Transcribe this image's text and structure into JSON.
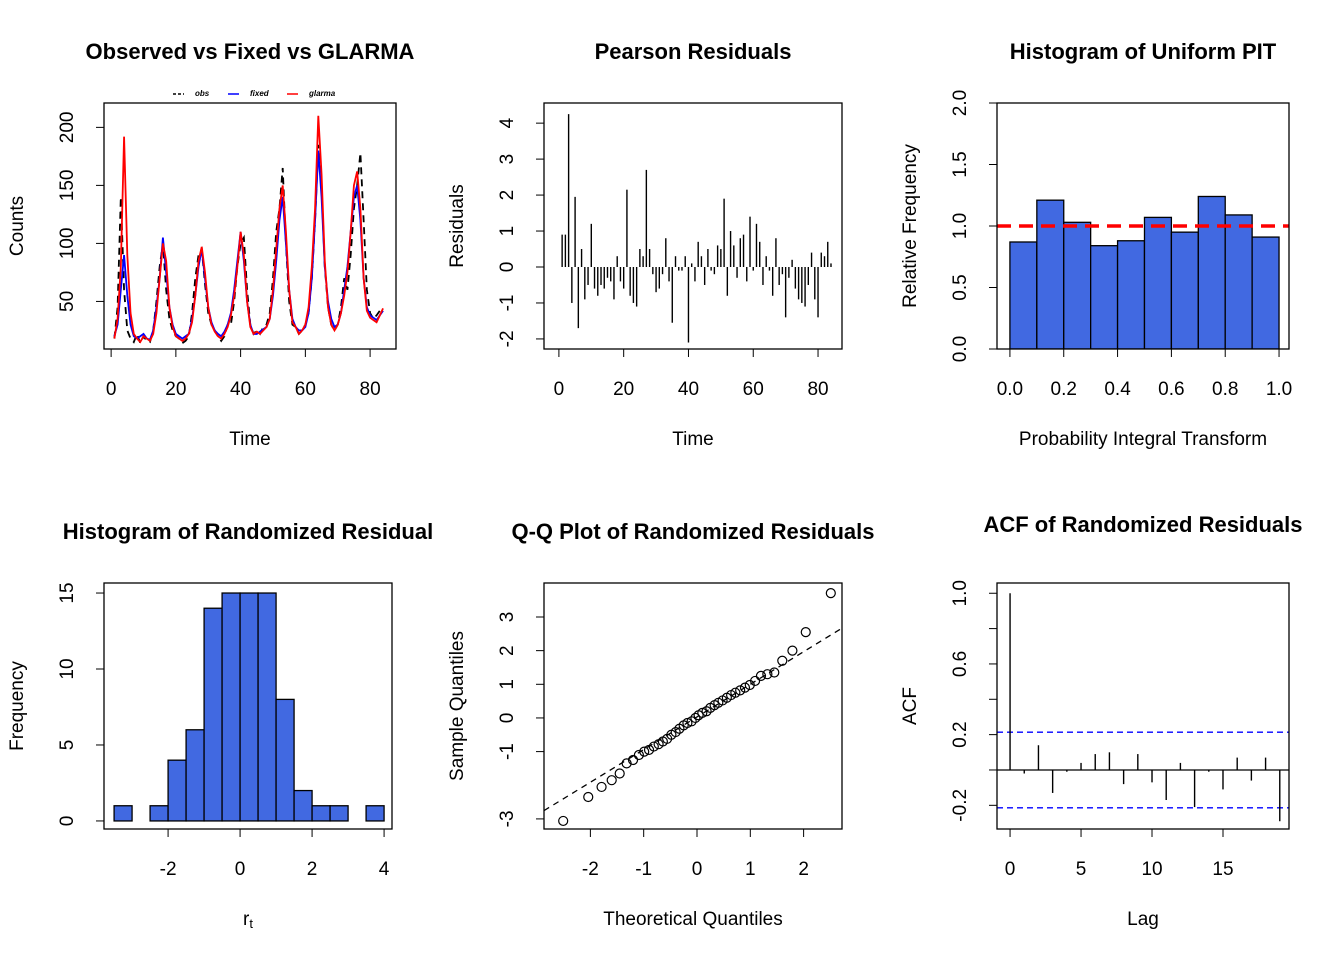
{
  "chart_data": [
    {
      "type": "line",
      "title": "Observed vs Fixed vs GLARMA",
      "x_label": "Time",
      "y_label": "Counts",
      "legend": "top",
      "x": [
        1,
        2,
        3,
        4,
        5,
        6,
        7,
        8,
        9,
        10,
        11,
        12,
        13,
        14,
        15,
        16,
        17,
        18,
        19,
        20,
        21,
        22,
        23,
        24,
        25,
        26,
        27,
        28,
        29,
        30,
        31,
        32,
        33,
        34,
        35,
        36,
        37,
        38,
        39,
        40,
        41,
        42,
        43,
        44,
        45,
        46,
        47,
        48,
        49,
        50,
        51,
        52,
        53,
        54,
        55,
        56,
        57,
        58,
        59,
        60,
        61,
        62,
        63,
        64,
        65,
        66,
        67,
        68,
        69,
        70,
        71,
        72,
        73,
        74,
        75,
        76,
        77,
        78,
        79,
        80,
        81,
        82,
        83,
        84
      ],
      "series": [
        {
          "name": "obs",
          "color": "#000000",
          "linestyle": "dashed",
          "values": [
            18,
            45,
            140,
            60,
            25,
            18,
            15,
            22,
            14,
            20,
            16,
            15,
            25,
            50,
            80,
            100,
            60,
            35,
            25,
            20,
            18,
            14,
            16,
            20,
            40,
            70,
            90,
            95,
            65,
            40,
            30,
            25,
            20,
            16,
            20,
            30,
            30,
            50,
            80,
            100,
            105,
            60,
            30,
            22,
            25,
            22,
            28,
            30,
            40,
            70,
            110,
            130,
            165,
            100,
            50,
            30,
            28,
            22,
            25,
            30,
            40,
            70,
            120,
            185,
            150,
            80,
            45,
            30,
            25,
            30,
            45,
            70,
            60,
            90,
            130,
            150,
            178,
            120,
            60,
            40,
            35,
            38,
            42,
            45
          ]
        },
        {
          "name": "fixed",
          "color": "#0000ff",
          "linestyle": "solid",
          "values": [
            20,
            30,
            60,
            90,
            55,
            30,
            20,
            18,
            20,
            22,
            18,
            17,
            25,
            45,
            70,
            105,
            75,
            45,
            30,
            22,
            20,
            18,
            20,
            22,
            35,
            55,
            80,
            95,
            70,
            45,
            32,
            25,
            22,
            20,
            24,
            30,
            40,
            60,
            85,
            110,
            85,
            50,
            30,
            22,
            22,
            24,
            26,
            28,
            35,
            55,
            85,
            120,
            140,
            100,
            60,
            35,
            28,
            25,
            25,
            28,
            40,
            70,
            120,
            180,
            140,
            80,
            50,
            35,
            28,
            30,
            40,
            60,
            80,
            110,
            140,
            150,
            120,
            70,
            45,
            38,
            36,
            34,
            38,
            42
          ]
        },
        {
          "name": "glarma",
          "color": "#ff0000",
          "linestyle": "solid",
          "values": [
            18,
            35,
            80,
            192,
            90,
            40,
            22,
            18,
            15,
            20,
            18,
            16,
            22,
            40,
            70,
            100,
            85,
            45,
            28,
            20,
            18,
            16,
            18,
            22,
            32,
            55,
            85,
            97,
            75,
            45,
            30,
            24,
            20,
            18,
            22,
            28,
            38,
            55,
            80,
            110,
            90,
            50,
            28,
            22,
            24,
            22,
            25,
            28,
            35,
            60,
            95,
            130,
            150,
            110,
            60,
            32,
            28,
            22,
            25,
            30,
            45,
            80,
            130,
            210,
            160,
            85,
            45,
            30,
            25,
            30,
            40,
            55,
            75,
            110,
            150,
            162,
            130,
            70,
            42,
            36,
            34,
            32,
            38,
            44
          ]
        }
      ],
      "xlim": [
        -2.2,
        88
      ],
      "xticks": [
        0,
        20,
        40,
        60,
        80
      ],
      "ylim": [
        9,
        221
      ],
      "yticks": [
        50,
        100,
        150,
        200
      ]
    },
    {
      "type": "stem",
      "title": "Pearson Residuals",
      "x_label": "Time",
      "y_label": "Residuals",
      "color": "#000000",
      "x": [
        1,
        2,
        3,
        4,
        5,
        6,
        7,
        8,
        9,
        10,
        11,
        12,
        13,
        14,
        15,
        16,
        17,
        18,
        19,
        20,
        21,
        22,
        23,
        24,
        25,
        26,
        27,
        28,
        29,
        30,
        31,
        32,
        33,
        34,
        35,
        36,
        37,
        38,
        39,
        40,
        41,
        42,
        43,
        44,
        45,
        46,
        47,
        48,
        49,
        50,
        51,
        52,
        53,
        54,
        55,
        56,
        57,
        58,
        59,
        60,
        61,
        62,
        63,
        64,
        65,
        66,
        67,
        68,
        69,
        70,
        71,
        72,
        73,
        74,
        75,
        76,
        77,
        78,
        79,
        80,
        81,
        82,
        83,
        84
      ],
      "values": [
        0.9,
        0.9,
        4.25,
        -1.0,
        1.95,
        -1.7,
        0.5,
        -0.9,
        -0.5,
        1.2,
        -0.6,
        -0.8,
        -0.5,
        -0.6,
        -0.3,
        -0.4,
        -0.9,
        0.3,
        -0.4,
        -0.6,
        2.15,
        -0.8,
        -1.0,
        -1.1,
        0.5,
        0.3,
        2.7,
        0.5,
        -0.2,
        -0.7,
        -0.6,
        -0.2,
        0.8,
        -0.4,
        -1.55,
        0.3,
        -0.1,
        -0.1,
        0.3,
        -2.1,
        0.1,
        -0.4,
        0.7,
        0.3,
        -0.5,
        0.5,
        -0.1,
        -0.2,
        0.6,
        0.5,
        1.9,
        -0.8,
        1.0,
        0.6,
        -0.3,
        0.8,
        0.9,
        -0.4,
        1.4,
        -0.1,
        1.2,
        0.7,
        -0.5,
        0.3,
        -0.1,
        -0.8,
        0.8,
        -0.5,
        -0.2,
        -1.4,
        -0.3,
        0.2,
        -0.6,
        -0.9,
        -1.0,
        -1.1,
        -0.5,
        0.4,
        -0.9,
        -1.4,
        0.4,
        0.3,
        0.7,
        0.1
      ],
      "xlim": [
        -4.6,
        87.4
      ],
      "xticks": [
        0,
        20,
        40,
        60,
        80
      ],
      "ylim": [
        -2.28,
        4.56
      ],
      "yticks": [
        -2,
        -1,
        0,
        1,
        2,
        3,
        4
      ]
    },
    {
      "type": "histogram",
      "title": "Histogram of Uniform PIT",
      "x_label": "Probability Integral Transform",
      "y_label": "Relative Frequency",
      "color": "#4169e1",
      "bins": [
        0,
        0.1,
        0.2,
        0.3,
        0.4,
        0.5,
        0.6,
        0.7,
        0.8,
        0.9,
        1
      ],
      "counts": [
        0.87,
        1.21,
        1.03,
        0.84,
        0.88,
        1.07,
        0.95,
        1.24,
        1.09,
        0.91
      ],
      "reference_line": {
        "value": 1,
        "color": "#ff0000",
        "linestyle": "dashed"
      },
      "xlim": [
        -0.048,
        1.037
      ],
      "xticks": [
        {
          "value": 0,
          "label": "0.0"
        },
        0.2,
        0.4,
        0.6,
        0.8,
        {
          "value": 1,
          "label": "1.0"
        }
      ],
      "ylim": [
        0,
        2
      ],
      "yticks": [
        {
          "value": 0,
          "label": "0.0"
        },
        0.5,
        {
          "value": 1,
          "label": "1.0"
        },
        1.5,
        {
          "value": 2,
          "label": "2.0"
        }
      ]
    },
    {
      "type": "histogram",
      "title": "Histogram of Randomized Residual",
      "x_label": "r",
      "x_label_subscript": "t",
      "y_label": "Frequency",
      "color": "#4169e1",
      "bins": [
        -3.5,
        -3,
        -2.5,
        -2,
        -1.5,
        -1,
        -0.5,
        0,
        0.5,
        1,
        1.5,
        2,
        2.5,
        3,
        3.5,
        4
      ],
      "counts": [
        1,
        0,
        1,
        4,
        6,
        14,
        15,
        15,
        15,
        8,
        2,
        1,
        1,
        0,
        1
      ],
      "xlim": [
        -3.78,
        4.22
      ],
      "xticks": [
        -2,
        0,
        2,
        4
      ],
      "ylim": [
        -0.53,
        15.66
      ],
      "yticks": [
        0,
        5,
        10,
        15
      ]
    },
    {
      "type": "scatter",
      "title": "Q-Q Plot of Randomized Residuals",
      "x_label": "Theoretical Quantiles",
      "y_label": "Sample Quantiles",
      "color": "#000000",
      "x": [
        -2.51,
        -2.04,
        -1.79,
        -1.6,
        -1.45,
        -1.32,
        -1.2,
        -1.09,
        -0.99,
        -0.9,
        -0.81,
        -0.72,
        -0.64,
        -0.56,
        -0.48,
        -0.4,
        -0.33,
        -0.25,
        -0.18,
        -0.1,
        -0.03,
        0.03,
        0.1,
        0.18,
        0.25,
        0.33,
        0.4,
        0.48,
        0.56,
        0.64,
        0.72,
        0.81,
        0.9,
        0.99,
        1.09,
        1.2,
        1.32,
        1.45,
        1.6,
        1.79,
        2.04,
        2.51
      ],
      "y": [
        -3.06,
        -2.35,
        -2.05,
        -1.85,
        -1.65,
        -1.35,
        -1.25,
        -1.1,
        -1.0,
        -0.95,
        -0.85,
        -0.78,
        -0.7,
        -0.62,
        -0.5,
        -0.42,
        -0.32,
        -0.22,
        -0.15,
        -0.1,
        0.0,
        0.08,
        0.15,
        0.2,
        0.3,
        0.38,
        0.45,
        0.52,
        0.6,
        0.68,
        0.75,
        0.82,
        0.9,
        0.98,
        1.1,
        1.25,
        1.3,
        1.35,
        1.7,
        2.0,
        2.55,
        3.71
      ],
      "qq_line": {
        "intercept": 0.03,
        "slope": 0.97
      },
      "xlim": [
        -2.87,
        2.72
      ],
      "xticks": [
        -2,
        -1,
        0,
        1,
        2
      ],
      "ylim": [
        -3.3,
        4.01
      ],
      "yticks": [
        -3,
        -1,
        0,
        1,
        2,
        3
      ]
    },
    {
      "type": "acf",
      "title": "ACF of Randomized Residuals",
      "x_label": "Lag",
      "y_label": "ACF",
      "color": "#000000",
      "ci_color": "#0000ff",
      "lags": [
        0,
        1,
        2,
        3,
        4,
        5,
        6,
        7,
        8,
        9,
        10,
        11,
        12,
        13,
        14,
        15,
        16,
        17,
        18,
        19
      ],
      "values": [
        1.0,
        -0.02,
        0.14,
        -0.13,
        -0.01,
        0.04,
        0.09,
        0.1,
        -0.08,
        0.09,
        -0.07,
        -0.17,
        0.04,
        -0.21,
        -0.01,
        -0.11,
        0.07,
        -0.06,
        0.07,
        -0.29
      ],
      "ci": [
        0.214,
        -0.214
      ],
      "xlim": [
        -0.92,
        19.65
      ],
      "xticks": [
        0,
        5,
        10,
        15
      ],
      "ylim": [
        -0.334,
        1.058
      ],
      "yticks": [
        -0.2,
        0.2,
        0.6,
        {
          "value": 1,
          "label": "1.0"
        }
      ],
      "minor_yticks": [
        0,
        0.4,
        0.8
      ]
    }
  ]
}
